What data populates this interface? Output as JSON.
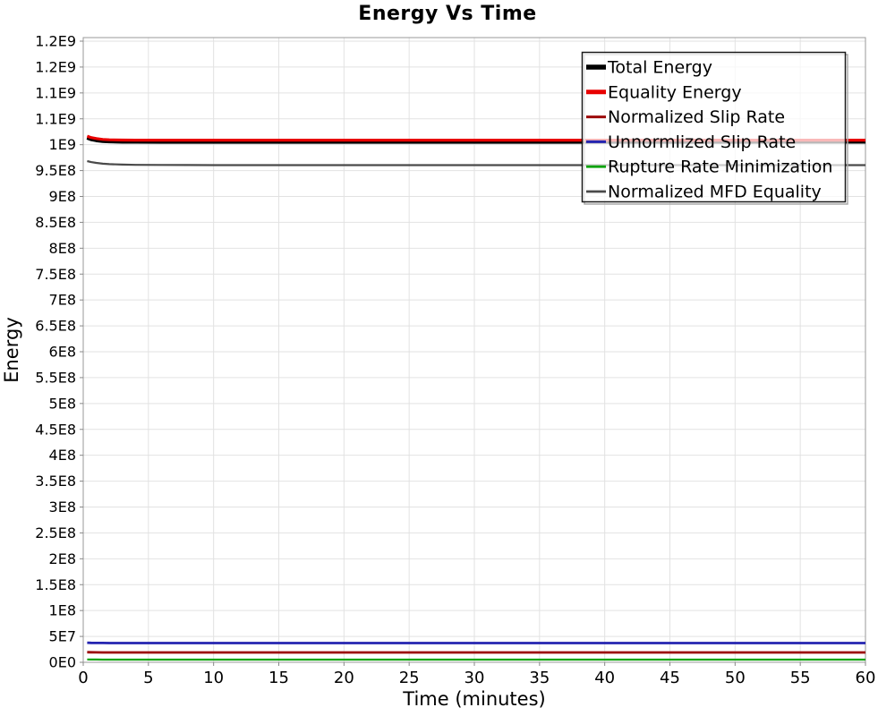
{
  "chart_data": {
    "type": "line",
    "title": "Energy Vs Time",
    "xlabel": "Time (minutes)",
    "ylabel": "Energy",
    "xlim": [
      0,
      60
    ],
    "ylim": [
      0,
      1207000000
    ],
    "grid": true,
    "legend_position": "top-right-inside",
    "x_ticks": {
      "values": [
        0,
        5,
        10,
        15,
        20,
        25,
        30,
        35,
        40,
        45,
        50,
        55,
        60
      ],
      "labels": [
        "0",
        "5",
        "10",
        "15",
        "20",
        "25",
        "30",
        "35",
        "40",
        "45",
        "50",
        "55",
        "60"
      ]
    },
    "y_ticks": {
      "values": [
        0,
        50000000,
        100000000,
        150000000,
        200000000,
        250000000,
        300000000,
        350000000,
        400000000,
        450000000,
        500000000,
        550000000,
        600000000,
        650000000,
        700000000,
        750000000,
        800000000,
        850000000,
        900000000,
        950000000,
        1000000000,
        1050000000,
        1100000000,
        1150000000,
        1200000000
      ],
      "labels": [
        "0E0",
        "5E7",
        "1E8",
        "1.5E8",
        "2E8",
        "2.5E8",
        "3E8",
        "3.5E8",
        "4E8",
        "4.5E8",
        "5E8",
        "5.5E8",
        "6E8",
        "6.5E8",
        "7E8",
        "7.5E8",
        "8E8",
        "8.5E8",
        "9E8",
        "9.5E8",
        "1E9",
        "1.1E9",
        "1.1E9",
        "1.2E9",
        "1.2E9"
      ]
    },
    "x": [
      0.3,
      0.6,
      1,
      1.5,
      2,
      3,
      4,
      6,
      8,
      10,
      15,
      20,
      25,
      30,
      35,
      40,
      45,
      50,
      55,
      60
    ],
    "series": [
      {
        "name": "Total Energy",
        "color": "#000000",
        "width": 4.5,
        "legend_width": 5.5,
        "values": [
          1013600000,
          1010800000,
          1008800000,
          1007200000,
          1006500000,
          1006000000,
          1005800000,
          1005700000,
          1005700000,
          1005700000,
          1005700000,
          1005700000,
          1005700000,
          1005700000,
          1005700000,
          1005700000,
          1005700000,
          1005700000,
          1005800000,
          1005800000
        ]
      },
      {
        "name": "Equality Energy",
        "color": "#e80000",
        "width": 3.2,
        "legend_width": 5.0,
        "values": [
          1016600000,
          1013800000,
          1011800000,
          1010200000,
          1009500000,
          1009000000,
          1008800000,
          1008700000,
          1008700000,
          1008700000,
          1008700000,
          1008700000,
          1008700000,
          1008700000,
          1008700000,
          1008700000,
          1008700000,
          1008700000,
          1008800000,
          1008800000
        ]
      },
      {
        "name": "Normalized Slip Rate",
        "color": "#9c0a0a",
        "width": 2.8,
        "legend_width": 3.0,
        "values": [
          19500000,
          19300000,
          19200000,
          19100000,
          19000000,
          19000000,
          19000000,
          19000000,
          19000000,
          19000000,
          19000000,
          19000000,
          19000000,
          19000000,
          19000000,
          19000000,
          19000000,
          19000000,
          19000000,
          19000000
        ]
      },
      {
        "name": "Unnormlized Slip Rate",
        "color": "#2424b0",
        "width": 2.8,
        "legend_width": 3.0,
        "values": [
          37800000,
          37600000,
          37400000,
          37300000,
          37200000,
          37200000,
          37200000,
          37200000,
          37200000,
          37200000,
          37200000,
          37200000,
          37200000,
          37200000,
          37200000,
          37200000,
          37200000,
          37200000,
          37200000,
          37200000
        ]
      },
      {
        "name": "Rupture Rate Minimization",
        "color": "#0fa30f",
        "width": 2.2,
        "legend_width": 2.8,
        "values": [
          5500000,
          5400000,
          5300000,
          5200000,
          5200000,
          5200000,
          5200000,
          5200000,
          5200000,
          5200000,
          5200000,
          5200000,
          5200000,
          5200000,
          5200000,
          5200000,
          5200000,
          5200000,
          5200000,
          5200000
        ]
      },
      {
        "name": "Normalized MFD Equality",
        "color": "#4a4a4a",
        "width": 2.2,
        "legend_width": 2.8,
        "values": [
          968300000,
          966400000,
          964800000,
          963300000,
          962400000,
          961500000,
          961100000,
          960800000,
          960700000,
          960600000,
          960600000,
          960600000,
          960600000,
          960600000,
          960600000,
          960600000,
          960600000,
          960600000,
          960600000,
          960600000
        ]
      }
    ],
    "colors": {
      "grid": "#e2e2e2",
      "plot_border": "#999999",
      "tick": "#888888",
      "text": "#000000",
      "legend_border": "#1a1a1a",
      "legend_shadow": "#aaaaaa"
    }
  }
}
